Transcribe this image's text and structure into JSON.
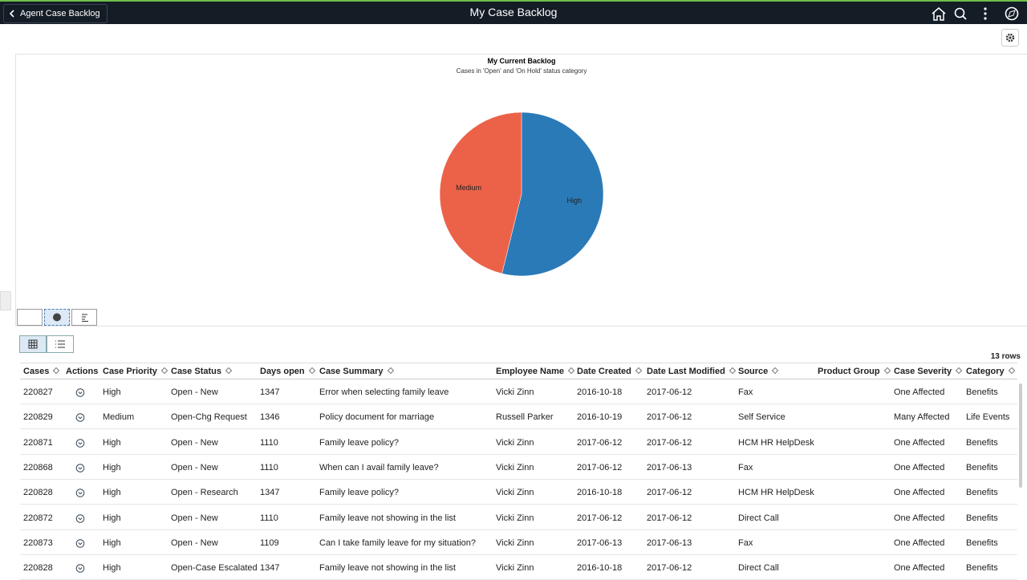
{
  "header": {
    "back": "Agent Case Backlog",
    "title": "My Case Backlog"
  },
  "chart_data": {
    "type": "pie",
    "title": "My Current Backlog",
    "subtitle": "Cases in 'Open' and 'On Hold' status category",
    "categories": [
      "High",
      "Medium"
    ],
    "values": [
      7,
      6
    ],
    "colors": [
      "#2a7ab8",
      "#ec6249"
    ]
  },
  "table": {
    "row_count": "13 rows",
    "columns": [
      "Cases",
      "Actions",
      "Case Priority",
      "Case Status",
      "Days open",
      "Case Summary",
      "Employee Name",
      "Date Created",
      "Date Last Modified",
      "Source",
      "Product Group",
      "Case Severity",
      "Category"
    ],
    "rows": [
      [
        "220827",
        "High",
        "Open - New",
        "1347",
        "Error when selecting family leave",
        "Vicki Zinn",
        "2016-10-18",
        "2017-06-12",
        "Fax",
        "One Affected",
        "Benefits"
      ],
      [
        "220829",
        "Medium",
        "Open-Chg Request",
        "1346",
        "Policy document for marriage",
        "Russell Parker",
        "2016-10-19",
        "2017-06-12",
        "Self Service",
        "Many Affected",
        "Life Events"
      ],
      [
        "220871",
        "High",
        "Open - New",
        "1110",
        "Family leave policy?",
        "Vicki Zinn",
        "2017-06-12",
        "2017-06-12",
        "HCM HR HelpDesk",
        "One Affected",
        "Benefits"
      ],
      [
        "220868",
        "High",
        "Open - New",
        "1110",
        "When can I avail family leave?",
        "Vicki Zinn",
        "2017-06-12",
        "2017-06-13",
        "Fax",
        "One Affected",
        "Benefits"
      ],
      [
        "220828",
        "High",
        "Open - Research",
        "1347",
        "Family leave policy?",
        "Vicki Zinn",
        "2016-10-18",
        "2017-06-12",
        "HCM HR HelpDesk",
        "One Affected",
        "Benefits"
      ],
      [
        "220872",
        "High",
        "Open - New",
        "1110",
        "Family leave not showing in the list",
        "Vicki Zinn",
        "2017-06-12",
        "2017-06-12",
        "Direct Call",
        "One Affected",
        "Benefits"
      ],
      [
        "220873",
        "High",
        "Open - New",
        "1109",
        "Can I take family leave for my situation?",
        "Vicki Zinn",
        "2017-06-13",
        "2017-06-13",
        "Fax",
        "One Affected",
        "Benefits"
      ],
      [
        "220828",
        "High",
        "Open-Case Escalated",
        "1347",
        "Family leave not showing in the list",
        "Vicki Zinn",
        "2016-10-18",
        "2017-06-12",
        "Direct Call",
        "One Affected",
        "Benefits"
      ]
    ]
  }
}
